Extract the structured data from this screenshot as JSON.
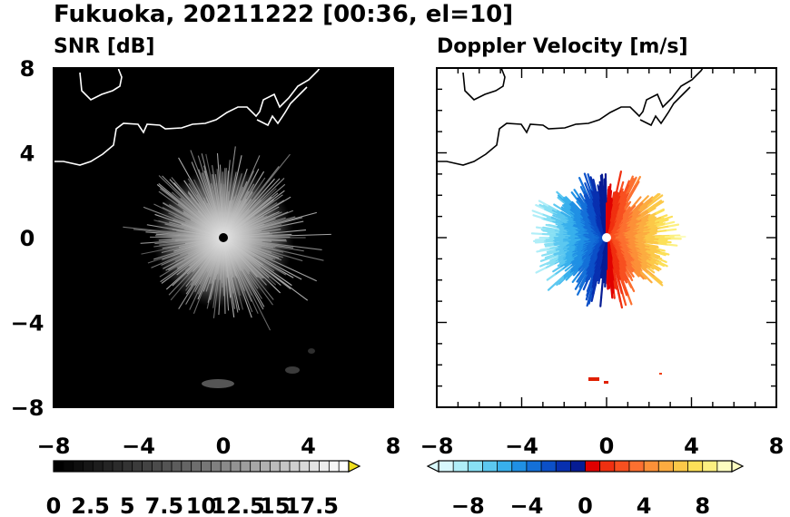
{
  "title": "Fukuoka, 20211222 [00:36, el=10]",
  "chart_data": [
    {
      "type": "heatmap",
      "panel_title": "SNR [dB]",
      "x_ticks": [
        "−8",
        "−4",
        "0",
        "4",
        "8"
      ],
      "y_ticks": [
        "8",
        "4",
        "0",
        "−4",
        "−8"
      ],
      "xlim": [
        -8,
        8
      ],
      "ylim": [
        -8,
        8
      ],
      "background": "#000000",
      "colorbar": {
        "ticks": [
          "0",
          "2.5",
          "5",
          "7.5",
          "10",
          "12.5",
          "15",
          "17.5"
        ],
        "range": [
          0,
          20
        ],
        "colors": [
          "#000000",
          "#070707",
          "#0e0e0e",
          "#161616",
          "#1d1d1d",
          "#242424",
          "#2b2b2b",
          "#333333",
          "#3b3b3b",
          "#434343",
          "#4b4b4b",
          "#545454",
          "#5c5c5c",
          "#656565",
          "#6e6e6e",
          "#777777",
          "#808080",
          "#8a8a8a",
          "#939393",
          "#9d9d9d",
          "#a7a7a7",
          "#b1b1b1",
          "#bbbbbb",
          "#c5c5c5",
          "#cfcfcf",
          "#d9d9d9",
          "#e3e3e3",
          "#ededed",
          "#f7f7f7",
          "#ffffff"
        ],
        "overflow_color": "#f0e020"
      }
    },
    {
      "type": "heatmap",
      "panel_title": "Doppler Velocity [m/s]",
      "x_ticks": [
        "−8",
        "−4",
        "0",
        "4",
        "8"
      ],
      "y_ticks": [],
      "xlim": [
        -8,
        8
      ],
      "ylim": [
        -8,
        8
      ],
      "background": "#ffffff",
      "colorbar": {
        "ticks": [
          "−8",
          "−4",
          "0",
          "4",
          "8"
        ],
        "range": [
          -10,
          10
        ],
        "colors": [
          "#d8f8fc",
          "#b0eef8",
          "#88e0f4",
          "#5cc8f0",
          "#38b0ec",
          "#2090e4",
          "#1470d8",
          "#0c50c8",
          "#0830b0",
          "#061c94",
          "#e00000",
          "#f03010",
          "#f85020",
          "#fc7030",
          "#fc9038",
          "#fcac40",
          "#fcc848",
          "#fce058",
          "#fcf080",
          "#fcfcc0"
        ]
      }
    }
  ]
}
